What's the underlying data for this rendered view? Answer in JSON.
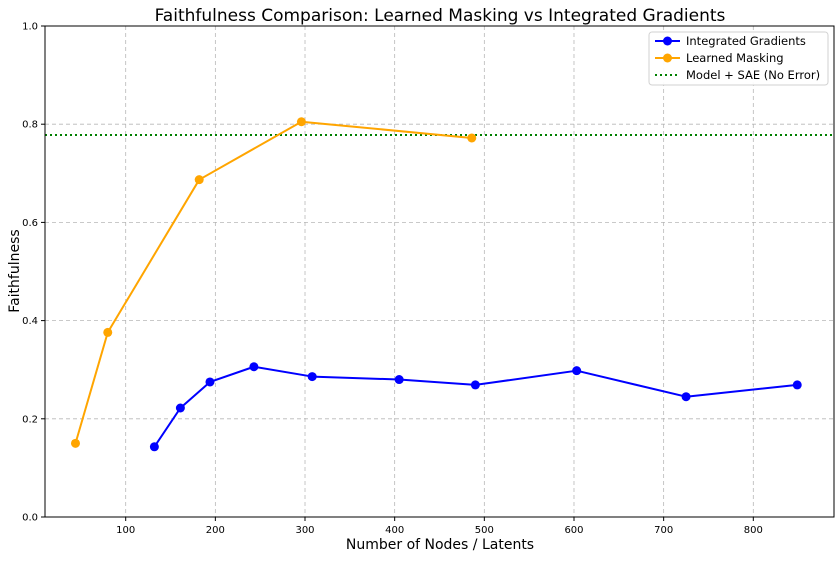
{
  "chart_data": {
    "type": "line",
    "title": "Faithfulness Comparison: Learned Masking vs Integrated Gradients",
    "xlabel": "Number of Nodes / Latents",
    "ylabel": "Faithfulness",
    "xlim": [
      10,
      890
    ],
    "ylim": [
      0.0,
      1.0
    ],
    "x_ticks": [
      100,
      200,
      300,
      400,
      500,
      600,
      700,
      800
    ],
    "y_ticks": [
      0.0,
      0.2,
      0.4,
      0.6,
      0.8,
      1.0
    ],
    "x_tick_labels": [
      "100",
      "200",
      "300",
      "400",
      "500",
      "600",
      "700",
      "800"
    ],
    "y_tick_labels": [
      "0.0",
      "0.2",
      "0.4",
      "0.6",
      "0.8",
      "1.0"
    ],
    "grid": true,
    "legend_position": "upper right",
    "series": [
      {
        "name": "Integrated Gradients",
        "color": "#0000ff",
        "marker": "circle",
        "x": [
          132,
          161,
          194,
          243,
          308,
          405,
          490,
          603,
          725,
          849
        ],
        "y": [
          0.143,
          0.222,
          0.275,
          0.306,
          0.286,
          0.28,
          0.269,
          0.298,
          0.245,
          0.269
        ]
      },
      {
        "name": "Learned Masking",
        "color": "#ffa500",
        "marker": "circle",
        "x": [
          44,
          80,
          182,
          296,
          486
        ],
        "y": [
          0.15,
          0.376,
          0.687,
          0.805,
          0.772
        ]
      }
    ],
    "reference_lines": [
      {
        "name": "Model + SAE (No Error)",
        "color": "#008000",
        "style": "dotted",
        "y": 0.778
      }
    ]
  }
}
